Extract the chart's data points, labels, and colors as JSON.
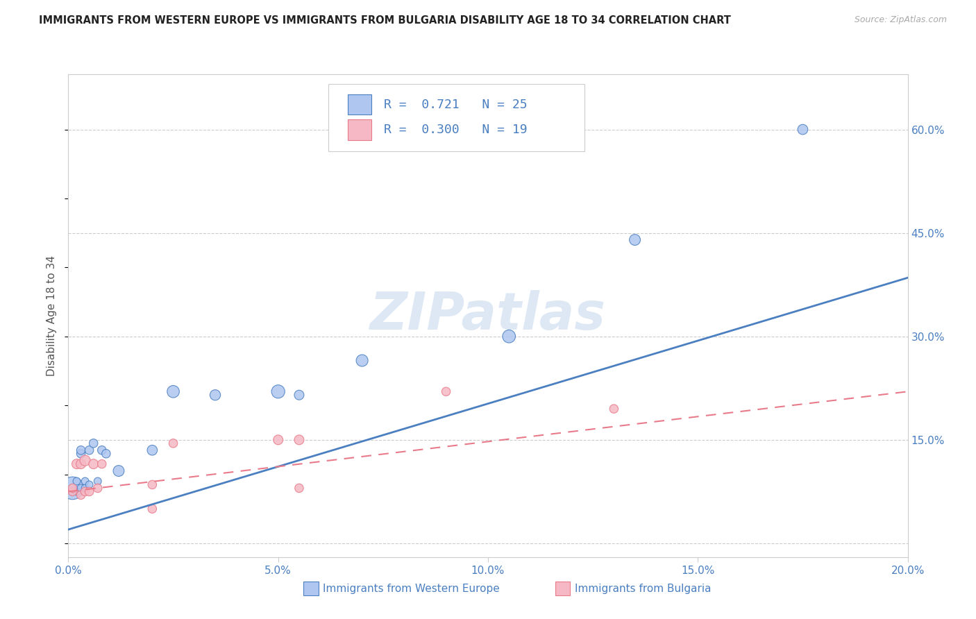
{
  "title": "IMMIGRANTS FROM WESTERN EUROPE VS IMMIGRANTS FROM BULGARIA DISABILITY AGE 18 TO 34 CORRELATION CHART",
  "source": "Source: ZipAtlas.com",
  "ylabel_label": "Disability Age 18 to 34",
  "legend_label1": "Immigrants from Western Europe",
  "legend_label2": "Immigrants from Bulgaria",
  "R1": 0.721,
  "N1": 25,
  "R2": 0.3,
  "N2": 19,
  "color_blue": "#aec6f0",
  "color_pink": "#f5b8c4",
  "color_blue_line": "#4a7fc1",
  "color_pink_line": "#e87a8a",
  "color_blue_text": "#4a7fc1",
  "watermark": "ZIPatlas",
  "xlim": [
    0.0,
    0.2
  ],
  "ylim": [
    -0.02,
    0.68
  ],
  "xticks": [
    0.0,
    0.05,
    0.1,
    0.15,
    0.2
  ],
  "yticks_right": [
    0.15,
    0.3,
    0.45,
    0.6
  ],
  "blue_x": [
    0.001,
    0.001,
    0.002,
    0.002,
    0.003,
    0.003,
    0.003,
    0.004,
    0.004,
    0.005,
    0.005,
    0.006,
    0.007,
    0.008,
    0.009,
    0.012,
    0.02,
    0.025,
    0.035,
    0.05,
    0.055,
    0.07,
    0.105,
    0.135,
    0.175
  ],
  "blue_y": [
    0.075,
    0.08,
    0.075,
    0.09,
    0.13,
    0.135,
    0.08,
    0.09,
    0.08,
    0.135,
    0.085,
    0.145,
    0.09,
    0.135,
    0.13,
    0.105,
    0.135,
    0.22,
    0.215,
    0.22,
    0.215,
    0.265,
    0.3,
    0.44,
    0.6
  ],
  "blue_size": [
    60,
    550,
    60,
    60,
    80,
    80,
    60,
    60,
    60,
    80,
    60,
    80,
    60,
    80,
    80,
    130,
    110,
    160,
    120,
    190,
    100,
    150,
    180,
    130,
    110
  ],
  "pink_x": [
    0.001,
    0.001,
    0.002,
    0.003,
    0.003,
    0.004,
    0.004,
    0.005,
    0.006,
    0.007,
    0.008,
    0.02,
    0.02,
    0.025,
    0.05,
    0.055,
    0.055,
    0.09,
    0.13
  ],
  "pink_y": [
    0.075,
    0.08,
    0.115,
    0.07,
    0.115,
    0.12,
    0.075,
    0.075,
    0.115,
    0.08,
    0.115,
    0.05,
    0.085,
    0.145,
    0.15,
    0.15,
    0.08,
    0.22,
    0.195
  ],
  "pink_size": [
    80,
    80,
    100,
    80,
    100,
    120,
    80,
    80,
    100,
    80,
    80,
    80,
    80,
    80,
    100,
    100,
    80,
    80,
    80
  ],
  "blue_line_x": [
    0.0,
    0.2
  ],
  "blue_line_y": [
    0.02,
    0.385
  ],
  "pink_line_x": [
    0.0,
    0.2
  ],
  "pink_line_y": [
    0.075,
    0.22
  ]
}
